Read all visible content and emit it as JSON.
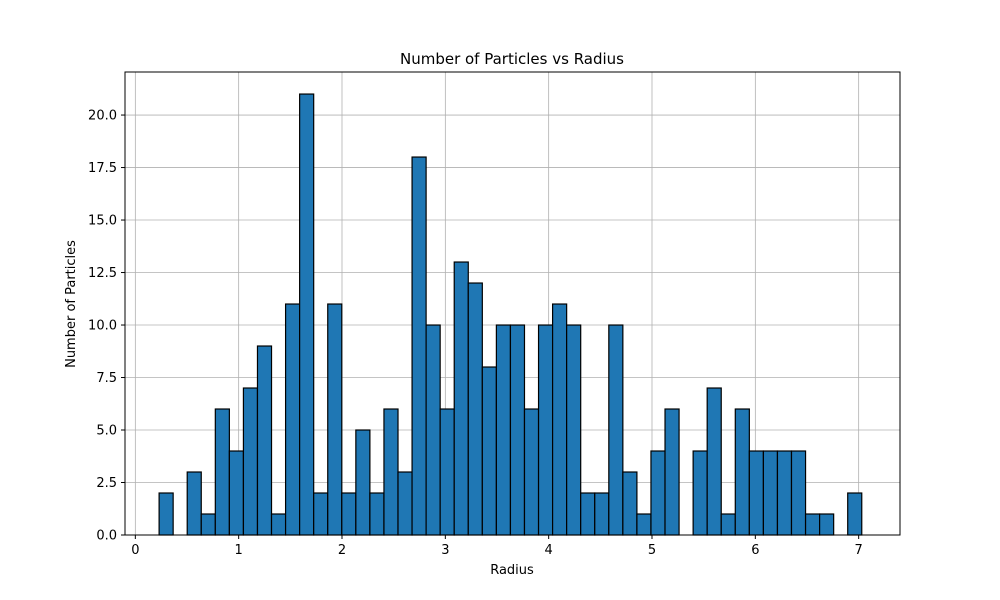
{
  "chart_data": {
    "type": "bar",
    "title": "Number of Particles vs Radius",
    "xlabel": "Radius",
    "ylabel": "Number of Particles",
    "xlim": [
      -0.1,
      7.4
    ],
    "ylim": [
      0,
      22.05
    ],
    "grid": true,
    "bar_color": "#1f77b4",
    "edge_color": "#000000",
    "x_ticks": [
      {
        "value": 0,
        "label": "0"
      },
      {
        "value": 1,
        "label": "1"
      },
      {
        "value": 2,
        "label": "2"
      },
      {
        "value": 3,
        "label": "3"
      },
      {
        "value": 4,
        "label": "4"
      },
      {
        "value": 5,
        "label": "5"
      },
      {
        "value": 6,
        "label": "6"
      },
      {
        "value": 7,
        "label": "7"
      }
    ],
    "y_ticks": [
      {
        "value": 0,
        "label": "0.0"
      },
      {
        "value": 2.5,
        "label": "2.5"
      },
      {
        "value": 5,
        "label": "5.0"
      },
      {
        "value": 7.5,
        "label": "7.5"
      },
      {
        "value": 10,
        "label": "10.0"
      },
      {
        "value": 12.5,
        "label": "12.5"
      },
      {
        "value": 15,
        "label": "15.0"
      },
      {
        "value": 17.5,
        "label": "17.5"
      },
      {
        "value": 20,
        "label": "20.0"
      }
    ],
    "bin_edges": [
      0.23,
      0.366,
      0.502,
      0.638,
      0.774,
      0.91,
      1.046,
      1.182,
      1.318,
      1.454,
      1.59,
      1.726,
      1.862,
      1.998,
      2.134,
      2.27,
      2.406,
      2.542,
      2.678,
      2.814,
      2.95,
      3.086,
      3.222,
      3.358,
      3.494,
      3.63,
      3.766,
      3.902,
      4.038,
      4.174,
      4.31,
      4.446,
      4.582,
      4.718,
      4.854,
      4.99,
      5.126,
      5.262,
      5.398,
      5.534,
      5.67,
      5.806,
      5.942,
      6.078,
      6.214,
      6.35,
      6.486,
      6.622,
      6.758,
      6.894,
      7.03
    ],
    "values": [
      2,
      0,
      3,
      1,
      6,
      4,
      7,
      9,
      1,
      11,
      21,
      2,
      11,
      2,
      5,
      2,
      6,
      3,
      18,
      10,
      6,
      13,
      12,
      8,
      10,
      10,
      6,
      10,
      11,
      10,
      2,
      2,
      10,
      3,
      1,
      4,
      6,
      0,
      4,
      7,
      1,
      6,
      4,
      4,
      4,
      4,
      1,
      1,
      0,
      2
    ]
  }
}
